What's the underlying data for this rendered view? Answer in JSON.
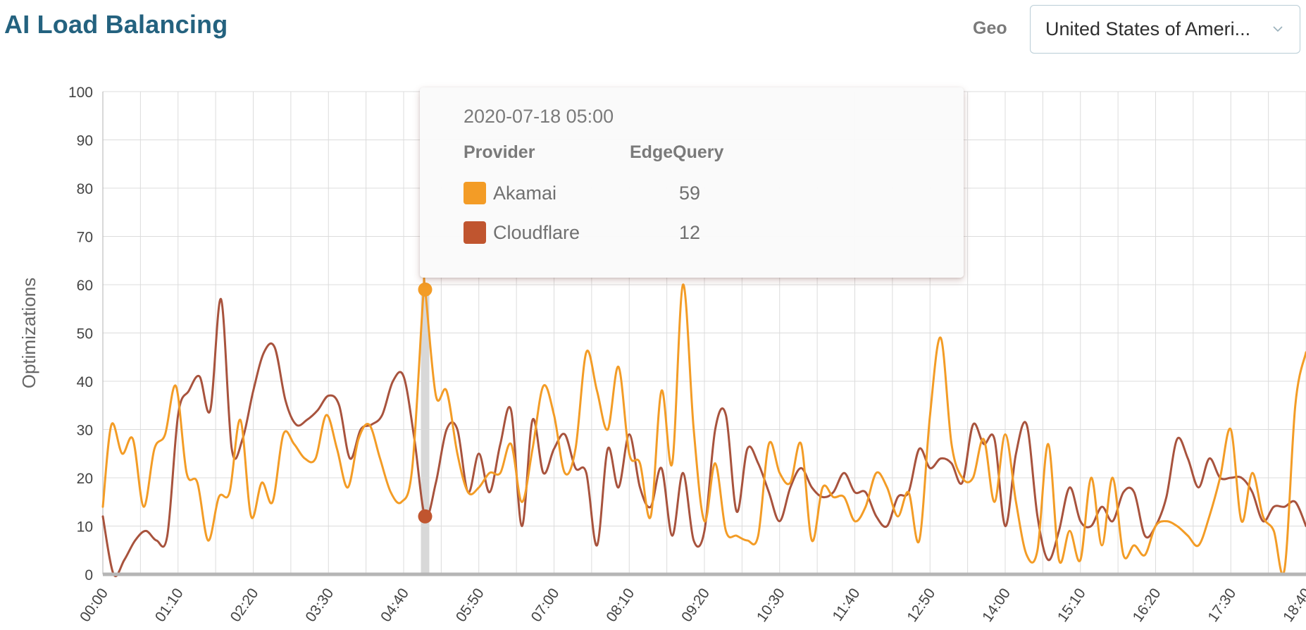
{
  "header": {
    "title": "AI Load Balancing",
    "geo_label": "Geo",
    "geo_value": "United States of Ameri..."
  },
  "chart_data": {
    "type": "line",
    "ylabel": "Optimizations",
    "xlabel": "",
    "ylim": [
      0,
      100
    ],
    "yticks": [
      0,
      10,
      20,
      30,
      40,
      50,
      60,
      70,
      80,
      90,
      100
    ],
    "xtick_labels": [
      "00:00",
      "01:10",
      "02:20",
      "03:30",
      "04:40",
      "05:50",
      "07:00",
      "08:10",
      "09:20",
      "10:30",
      "11:40",
      "12:50",
      "14:00",
      "15:10",
      "16:20",
      "17:30",
      "18:40"
    ],
    "x_range_minutes": [
      0,
      1120
    ],
    "grid": true,
    "colors": {
      "Akamai": "#f39c26",
      "Cloudflare": "#a8533d"
    },
    "series": [
      {
        "name": "Akamai",
        "color": "#f39c26",
        "points": [
          [
            0,
            14
          ],
          [
            8,
            31
          ],
          [
            18,
            25
          ],
          [
            28,
            28
          ],
          [
            38,
            14
          ],
          [
            48,
            26
          ],
          [
            58,
            29
          ],
          [
            68,
            39
          ],
          [
            78,
            21
          ],
          [
            88,
            19
          ],
          [
            98,
            7
          ],
          [
            108,
            16
          ],
          [
            118,
            17
          ],
          [
            128,
            32
          ],
          [
            138,
            12
          ],
          [
            148,
            19
          ],
          [
            158,
            15
          ],
          [
            168,
            29
          ],
          [
            178,
            27
          ],
          [
            188,
            24
          ],
          [
            198,
            24
          ],
          [
            208,
            33
          ],
          [
            218,
            26
          ],
          [
            228,
            18
          ],
          [
            238,
            28
          ],
          [
            248,
            31
          ],
          [
            258,
            24
          ],
          [
            268,
            17
          ],
          [
            278,
            15
          ],
          [
            288,
            22
          ],
          [
            298,
            57
          ],
          [
            300,
            59
          ],
          [
            310,
            37
          ],
          [
            320,
            38
          ],
          [
            330,
            25
          ],
          [
            340,
            17
          ],
          [
            350,
            18
          ],
          [
            360,
            21
          ],
          [
            370,
            21
          ],
          [
            380,
            27
          ],
          [
            390,
            15
          ],
          [
            400,
            26
          ],
          [
            410,
            39
          ],
          [
            420,
            33
          ],
          [
            430,
            21
          ],
          [
            440,
            26
          ],
          [
            450,
            46
          ],
          [
            460,
            38
          ],
          [
            470,
            30
          ],
          [
            480,
            43
          ],
          [
            490,
            25
          ],
          [
            500,
            23
          ],
          [
            510,
            12
          ],
          [
            520,
            38
          ],
          [
            530,
            23
          ],
          [
            540,
            60
          ],
          [
            550,
            30
          ],
          [
            560,
            11
          ],
          [
            570,
            23
          ],
          [
            580,
            9
          ],
          [
            590,
            8
          ],
          [
            600,
            7
          ],
          [
            610,
            8
          ],
          [
            620,
            27
          ],
          [
            630,
            21
          ],
          [
            640,
            19
          ],
          [
            650,
            27
          ],
          [
            660,
            7
          ],
          [
            670,
            18
          ],
          [
            680,
            16
          ],
          [
            690,
            16
          ],
          [
            700,
            11
          ],
          [
            710,
            14
          ],
          [
            720,
            21
          ],
          [
            730,
            18
          ],
          [
            740,
            12
          ],
          [
            750,
            17
          ],
          [
            760,
            7
          ],
          [
            770,
            33
          ],
          [
            780,
            49
          ],
          [
            790,
            27
          ],
          [
            800,
            20
          ],
          [
            810,
            20
          ],
          [
            820,
            28
          ],
          [
            830,
            15
          ],
          [
            840,
            29
          ],
          [
            850,
            15
          ],
          [
            860,
            4
          ],
          [
            870,
            5
          ],
          [
            880,
            27
          ],
          [
            890,
            3
          ],
          [
            900,
            9
          ],
          [
            910,
            3
          ],
          [
            920,
            20
          ],
          [
            930,
            6
          ],
          [
            940,
            20
          ],
          [
            950,
            4
          ],
          [
            960,
            6
          ],
          [
            970,
            4
          ],
          [
            980,
            10
          ],
          [
            990,
            11
          ],
          [
            1000,
            10
          ],
          [
            1010,
            8
          ],
          [
            1020,
            6
          ],
          [
            1030,
            12
          ],
          [
            1040,
            20
          ],
          [
            1050,
            30
          ],
          [
            1060,
            11
          ],
          [
            1070,
            21
          ],
          [
            1080,
            12
          ],
          [
            1090,
            9
          ],
          [
            1100,
            1
          ],
          [
            1110,
            35
          ],
          [
            1120,
            46
          ]
        ]
      },
      {
        "name": "Cloudflare",
        "color": "#a8533d",
        "points": [
          [
            0,
            12
          ],
          [
            10,
            0
          ],
          [
            20,
            3
          ],
          [
            30,
            7
          ],
          [
            40,
            9
          ],
          [
            50,
            7
          ],
          [
            60,
            8
          ],
          [
            70,
            33
          ],
          [
            80,
            38
          ],
          [
            90,
            41
          ],
          [
            100,
            34
          ],
          [
            110,
            57
          ],
          [
            120,
            26
          ],
          [
            130,
            28
          ],
          [
            140,
            38
          ],
          [
            150,
            46
          ],
          [
            160,
            47
          ],
          [
            170,
            36
          ],
          [
            180,
            31
          ],
          [
            190,
            32
          ],
          [
            200,
            34
          ],
          [
            210,
            37
          ],
          [
            220,
            35
          ],
          [
            230,
            24
          ],
          [
            240,
            30
          ],
          [
            250,
            31
          ],
          [
            260,
            33
          ],
          [
            270,
            40
          ],
          [
            280,
            41
          ],
          [
            290,
            28
          ],
          [
            300,
            12
          ],
          [
            310,
            19
          ],
          [
            320,
            30
          ],
          [
            330,
            30
          ],
          [
            340,
            17
          ],
          [
            350,
            25
          ],
          [
            360,
            17
          ],
          [
            370,
            27
          ],
          [
            380,
            34
          ],
          [
            390,
            10
          ],
          [
            400,
            32
          ],
          [
            410,
            21
          ],
          [
            420,
            26
          ],
          [
            430,
            29
          ],
          [
            440,
            22
          ],
          [
            450,
            21
          ],
          [
            460,
            6
          ],
          [
            470,
            26
          ],
          [
            480,
            18
          ],
          [
            490,
            29
          ],
          [
            500,
            18
          ],
          [
            510,
            14
          ],
          [
            520,
            22
          ],
          [
            530,
            8
          ],
          [
            540,
            21
          ],
          [
            550,
            7
          ],
          [
            560,
            9
          ],
          [
            570,
            30
          ],
          [
            580,
            33
          ],
          [
            590,
            13
          ],
          [
            600,
            26
          ],
          [
            610,
            23
          ],
          [
            620,
            17
          ],
          [
            630,
            11
          ],
          [
            640,
            18
          ],
          [
            650,
            22
          ],
          [
            660,
            18
          ],
          [
            670,
            16
          ],
          [
            680,
            17
          ],
          [
            690,
            21
          ],
          [
            700,
            17
          ],
          [
            710,
            17
          ],
          [
            720,
            12
          ],
          [
            730,
            10
          ],
          [
            740,
            16
          ],
          [
            750,
            17
          ],
          [
            760,
            26
          ],
          [
            770,
            22
          ],
          [
            780,
            24
          ],
          [
            790,
            23
          ],
          [
            800,
            19
          ],
          [
            810,
            31
          ],
          [
            820,
            27
          ],
          [
            830,
            28
          ],
          [
            840,
            10
          ],
          [
            850,
            25
          ],
          [
            860,
            31
          ],
          [
            870,
            12
          ],
          [
            880,
            3
          ],
          [
            890,
            9
          ],
          [
            900,
            18
          ],
          [
            910,
            11
          ],
          [
            920,
            10
          ],
          [
            930,
            14
          ],
          [
            940,
            11
          ],
          [
            950,
            17
          ],
          [
            960,
            17
          ],
          [
            970,
            8
          ],
          [
            980,
            10
          ],
          [
            990,
            16
          ],
          [
            1000,
            28
          ],
          [
            1010,
            24
          ],
          [
            1020,
            18
          ],
          [
            1030,
            24
          ],
          [
            1040,
            20
          ],
          [
            1050,
            20
          ],
          [
            1060,
            20
          ],
          [
            1070,
            17
          ],
          [
            1080,
            11
          ],
          [
            1090,
            14
          ],
          [
            1100,
            14
          ],
          [
            1110,
            15
          ],
          [
            1120,
            10
          ]
        ]
      }
    ],
    "hover": {
      "x": 300,
      "tooltip_title": "2020-07-18 05:00",
      "col_provider": "Provider",
      "col_value": "EdgeQuery",
      "rows": [
        {
          "name": "Akamai",
          "value": "59",
          "color": "#f39c26"
        },
        {
          "name": "Cloudflare",
          "value": "12",
          "color": "#c0552f"
        }
      ]
    }
  }
}
